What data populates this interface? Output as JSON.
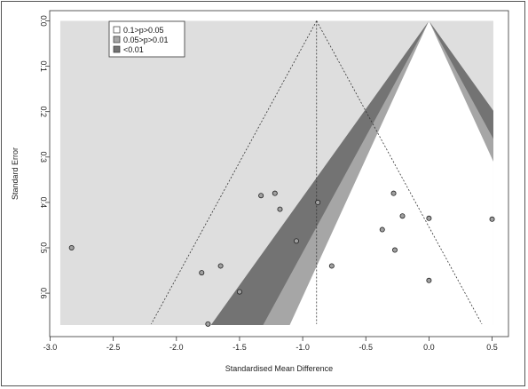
{
  "chart_data": {
    "type": "scatter",
    "subtype": "contour-enhanced funnel plot",
    "xlabel": "Standardised Mean Difference",
    "ylabel": "Standard Error",
    "xlim": [
      -3.0,
      0.5
    ],
    "ylim": [
      0.0,
      0.67
    ],
    "y_reversed": true,
    "x_ticks": [
      -3.0,
      -2.5,
      -2.0,
      -1.5,
      -1.0,
      -0.5,
      0.0,
      0.5
    ],
    "x_tick_labels": [
      "-3.0",
      "-2.5",
      "-2.0",
      "-1.5",
      "-1.0",
      "-0.5",
      "0.0",
      "0.5"
    ],
    "y_ticks": [
      0.0,
      0.1,
      0.2,
      0.3,
      0.4,
      0.5,
      0.6
    ],
    "y_tick_labels": [
      "0.0",
      "0.1",
      "0.2",
      "0.3",
      "0.4",
      "0.5",
      "0.6"
    ],
    "pooled_estimate": -0.89,
    "grid": false,
    "legend_position": "top-left",
    "legend": [
      {
        "label": "0.1>p>0.05",
        "color": "#ffffff"
      },
      {
        "label": "0.05>p>0.01",
        "color": "#a6a6a6"
      },
      {
        "label": "<0.01",
        "color": "#737373"
      }
    ],
    "contour_colors": {
      "background": "#dedede",
      "band_010": "#a6a6a6",
      "band_005": "#737373",
      "center": "#ffffff"
    },
    "points": [
      {
        "x": -2.83,
        "y": 0.5
      },
      {
        "x": -1.8,
        "y": 0.555
      },
      {
        "x": -1.75,
        "y": 0.668
      },
      {
        "x": -1.65,
        "y": 0.54
      },
      {
        "x": -1.5,
        "y": 0.597
      },
      {
        "x": -1.33,
        "y": 0.385
      },
      {
        "x": -1.22,
        "y": 0.38
      },
      {
        "x": -1.18,
        "y": 0.415
      },
      {
        "x": -1.05,
        "y": 0.485
      },
      {
        "x": -0.88,
        "y": 0.4
      },
      {
        "x": -0.77,
        "y": 0.54
      },
      {
        "x": -0.37,
        "y": 0.46
      },
      {
        "x": -0.28,
        "y": 0.38
      },
      {
        "x": -0.27,
        "y": 0.505
      },
      {
        "x": -0.21,
        "y": 0.43
      },
      {
        "x": 0.0,
        "y": 0.435
      },
      {
        "x": 0.0,
        "y": 0.572
      },
      {
        "x": 0.5,
        "y": 0.437
      }
    ]
  }
}
